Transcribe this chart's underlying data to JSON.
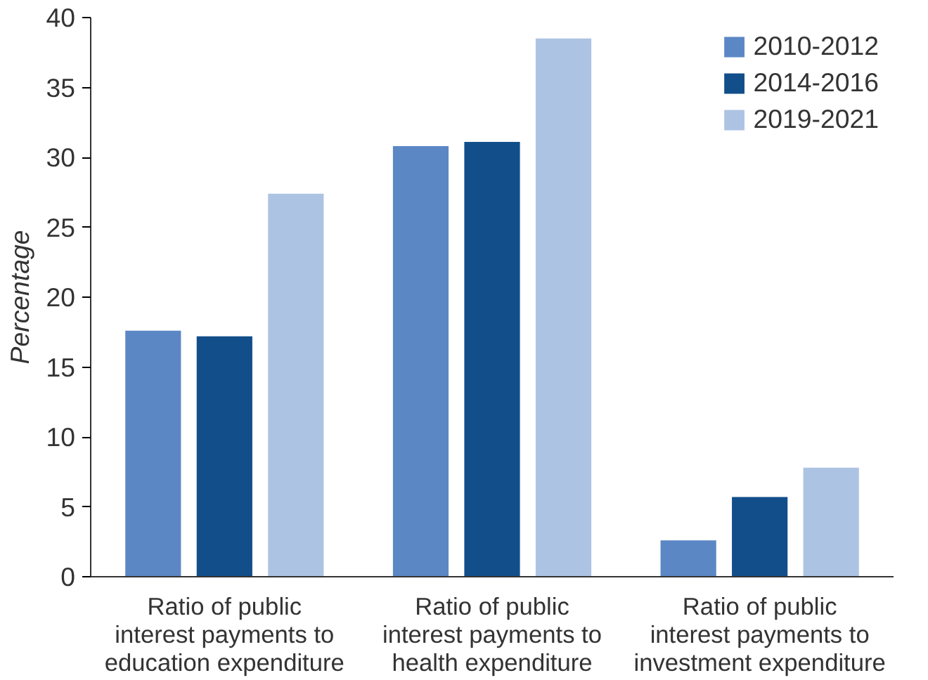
{
  "chart_data": {
    "type": "bar",
    "ylabel": "Percentage",
    "categories": [
      "Ratio of public interest payments to education expenditure",
      "Ratio of public interest payments to health expenditure",
      "Ratio of public interest payments to investment expenditure"
    ],
    "series": [
      {
        "name": "2010-2012",
        "color": "#5b87c5",
        "values": [
          17.6,
          30.8,
          2.6
        ]
      },
      {
        "name": "2014-2016",
        "color": "#124e8a",
        "values": [
          17.2,
          31.1,
          5.7
        ]
      },
      {
        "name": "2019-2021",
        "color": "#adc3e3",
        "values": [
          27.4,
          38.5,
          7.8
        ]
      }
    ],
    "ylim": [
      0,
      40
    ],
    "yticks": [
      0,
      5,
      10,
      15,
      20,
      25,
      30,
      35,
      40
    ],
    "grid": false,
    "legend": "top right"
  }
}
